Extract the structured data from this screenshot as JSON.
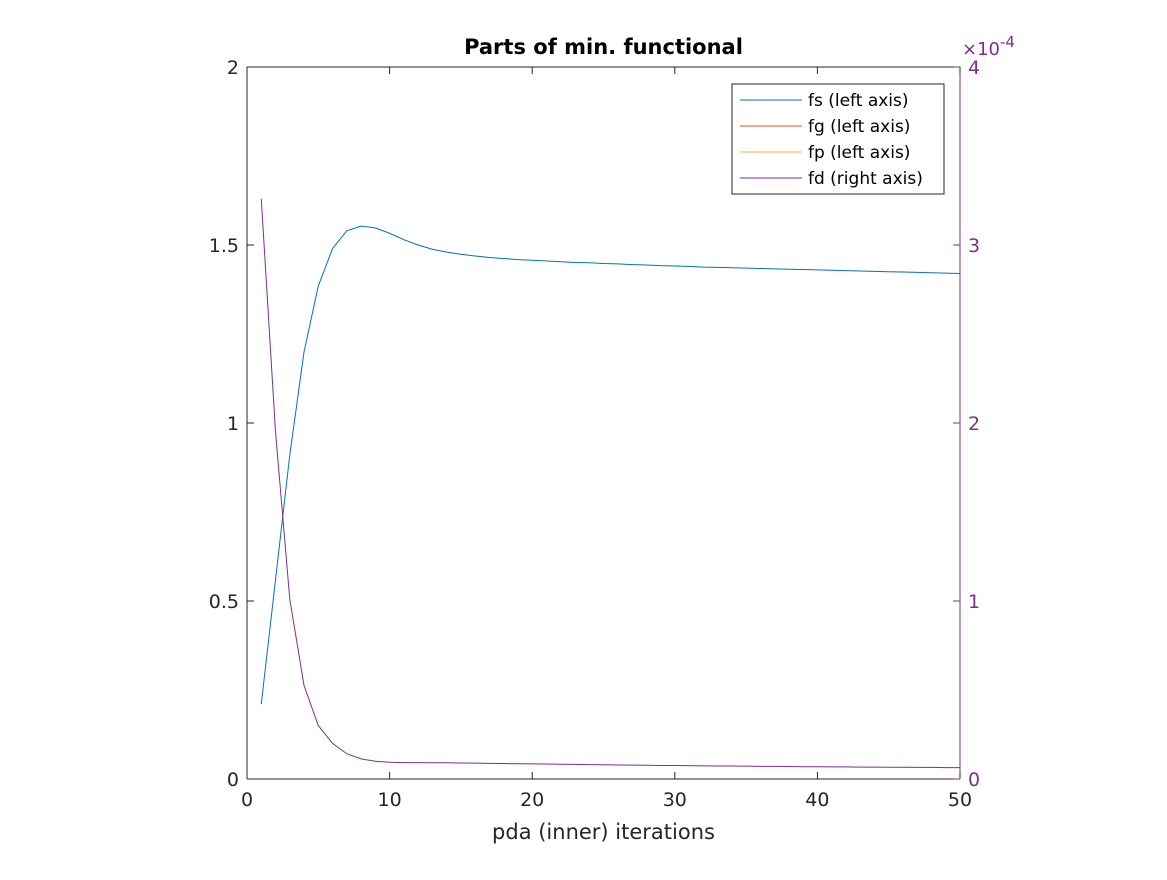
{
  "figure": {
    "title": "Parts of min. functional",
    "xlabel": "pda (inner) iterations",
    "right_axis_exponent_prefix": "×10",
    "right_axis_exponent_power": "-4"
  },
  "colors": {
    "fs": "#0072BD",
    "fg": "#D95319",
    "fp": "#EDB120",
    "fd": "#7E2F8E",
    "axis": "#262626",
    "right_axis": "#7E2F8E"
  },
  "chart_data": {
    "type": "line",
    "title": "Parts of min. functional",
    "xlabel": "pda (inner) iterations",
    "ylabel": "",
    "xlim": [
      0,
      50
    ],
    "ylim": [
      0,
      2
    ],
    "y2lim": [
      0,
      0.0004
    ],
    "grid": false,
    "legend_position": "top-right",
    "x_ticks": [
      0,
      10,
      20,
      30,
      40,
      50
    ],
    "y_ticks": [
      0,
      0.5,
      1,
      1.5,
      2
    ],
    "y2_ticks": [
      0,
      1,
      2,
      3,
      4
    ],
    "x": [
      1,
      2,
      3,
      4,
      5,
      6,
      7,
      8,
      9,
      10,
      11,
      12,
      13,
      14,
      15,
      16,
      17,
      18,
      19,
      20,
      21,
      22,
      23,
      24,
      25,
      26,
      27,
      28,
      29,
      30,
      31,
      32,
      33,
      34,
      35,
      36,
      37,
      38,
      39,
      40,
      41,
      42,
      43,
      44,
      45,
      46,
      47,
      48,
      49,
      50
    ],
    "series": [
      {
        "name": "fs (left axis)",
        "axis": "left",
        "color": "#0072BD",
        "values": [
          0.21,
          0.56,
          0.91,
          1.2,
          1.385,
          1.49,
          1.54,
          1.553,
          1.548,
          1.533,
          1.515,
          1.5,
          1.488,
          1.48,
          1.474,
          1.469,
          1.465,
          1.462,
          1.459,
          1.457,
          1.455,
          1.453,
          1.451,
          1.45,
          1.448,
          1.447,
          1.445,
          1.444,
          1.442,
          1.441,
          1.44,
          1.438,
          1.437,
          1.436,
          1.435,
          1.434,
          1.433,
          1.432,
          1.431,
          1.43,
          1.429,
          1.428,
          1.427,
          1.426,
          1.425,
          1.424,
          1.423,
          1.422,
          1.421,
          1.42
        ]
      },
      {
        "name": "fg (left axis)",
        "axis": "left",
        "color": "#D95319",
        "values": [
          0,
          0,
          0,
          0,
          0,
          0,
          0,
          0,
          0,
          0,
          0,
          0,
          0,
          0,
          0,
          0,
          0,
          0,
          0,
          0,
          0,
          0,
          0,
          0,
          0,
          0,
          0,
          0,
          0,
          0,
          0,
          0,
          0,
          0,
          0,
          0,
          0,
          0,
          0,
          0,
          0,
          0,
          0,
          0,
          0,
          0,
          0,
          0,
          0,
          0
        ]
      },
      {
        "name": "fp (left axis)",
        "axis": "left",
        "color": "#EDB120",
        "values": [
          0,
          0,
          0,
          0,
          0,
          0,
          0,
          0,
          0,
          0,
          0,
          0,
          0,
          0,
          0,
          0,
          0,
          0,
          0,
          0,
          0,
          0,
          0,
          0,
          0,
          0,
          0,
          0,
          0,
          0,
          0,
          0,
          0,
          0,
          0,
          0,
          0,
          0,
          0,
          0,
          0,
          0,
          0,
          0,
          0,
          0,
          0,
          0,
          0,
          0
        ]
      },
      {
        "name": "fd (right axis)",
        "axis": "right",
        "color": "#7E2F8E",
        "values": [
          0.000326,
          0.000195,
          0.000101,
          5.25e-05,
          3e-05,
          2e-05,
          1.42e-05,
          1.13e-05,
          1e-05,
          9.4e-06,
          9.2e-06,
          9.2e-06,
          9.1e-06,
          9.1e-06,
          9e-06,
          8.9e-06,
          8.8e-06,
          8.7e-06,
          8.6e-06,
          8.5e-06,
          8.4e-06,
          8.3e-06,
          8.2e-06,
          8.1e-06,
          8e-06,
          7.9e-06,
          7.8e-06,
          7.7e-06,
          7.6e-06,
          7.6e-06,
          7.5e-06,
          7.4e-06,
          7.3e-06,
          7.3e-06,
          7.2e-06,
          7.1e-06,
          7.1e-06,
          7e-06,
          6.9e-06,
          6.9e-06,
          6.8e-06,
          6.8e-06,
          6.7e-06,
          6.7e-06,
          6.6e-06,
          6.6e-06,
          6.5e-06,
          6.5e-06,
          6.4e-06,
          6.4e-06
        ]
      }
    ]
  }
}
